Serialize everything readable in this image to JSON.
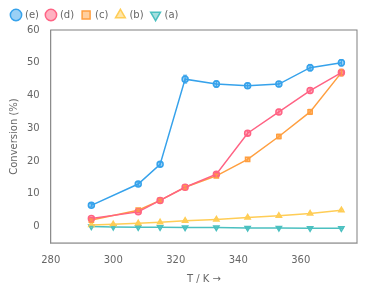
{
  "chart_data": {
    "type": "line",
    "title": "",
    "xlabel": "T / K →",
    "ylabel": "Conversion (%)",
    "xlim": [
      280,
      378
    ],
    "xticks": [
      280,
      300,
      320,
      340,
      360
    ],
    "ylim": [
      -5,
      60
    ],
    "yticks": [
      0,
      10,
      20,
      30,
      40,
      50,
      60
    ],
    "grid": false,
    "legend": "upper left",
    "series": [
      {
        "name": "(e)",
        "marker": "circle",
        "x": [
          293,
          308,
          315,
          323,
          333,
          343,
          353,
          363,
          373
        ],
        "values": [
          6.5,
          13.0,
          19.0,
          45.0,
          43.5,
          43.0,
          43.5,
          48.5,
          50.0
        ],
        "yerr": [
          0.5,
          0.6,
          0.7,
          1.2,
          1.0,
          0.8,
          0.8,
          1.0,
          1.0
        ]
      },
      {
        "name": "(d)",
        "marker": "circle",
        "x": [
          293,
          308,
          315,
          323,
          333,
          343,
          353,
          363,
          373
        ],
        "values": [
          2.5,
          4.5,
          8.0,
          12.0,
          16.0,
          28.5,
          35.0,
          41.5,
          47.0
        ],
        "yerr": [
          0.3,
          0.3,
          0.4,
          0.5,
          0.5,
          0.7,
          0.8,
          0.9,
          1.0
        ]
      },
      {
        "name": "(c)",
        "marker": "square",
        "x": [
          293,
          308,
          315,
          323,
          333,
          343,
          353,
          363,
          373
        ],
        "values": [
          2.0,
          5.0,
          8.0,
          12.0,
          15.5,
          20.5,
          27.5,
          35.0,
          47.0
        ],
        "yerr": [
          0.3,
          0.3,
          0.4,
          0.5,
          0.5,
          0.6,
          0.7,
          0.8,
          1.0
        ]
      },
      {
        "name": "(b)",
        "marker": "triangle-up",
        "x": [
          293,
          300,
          308,
          315,
          323,
          333,
          343,
          353,
          363,
          373
        ],
        "values": [
          0.5,
          0.7,
          1.0,
          1.3,
          1.8,
          2.2,
          2.8,
          3.3,
          4.0,
          5.0
        ],
        "yerr": [
          0.2,
          0.2,
          0.2,
          0.2,
          0.2,
          0.2,
          0.2,
          0.2,
          0.2,
          0.3
        ]
      },
      {
        "name": "(a)",
        "marker": "triangle-down",
        "x": [
          293,
          300,
          308,
          315,
          323,
          333,
          343,
          353,
          363,
          373
        ],
        "values": [
          0.0,
          -0.1,
          -0.2,
          -0.2,
          -0.3,
          -0.3,
          -0.4,
          -0.4,
          -0.5,
          -0.5
        ],
        "yerr": [
          0.1,
          0.1,
          0.1,
          0.1,
          0.1,
          0.1,
          0.1,
          0.1,
          0.1,
          0.1
        ]
      }
    ]
  }
}
